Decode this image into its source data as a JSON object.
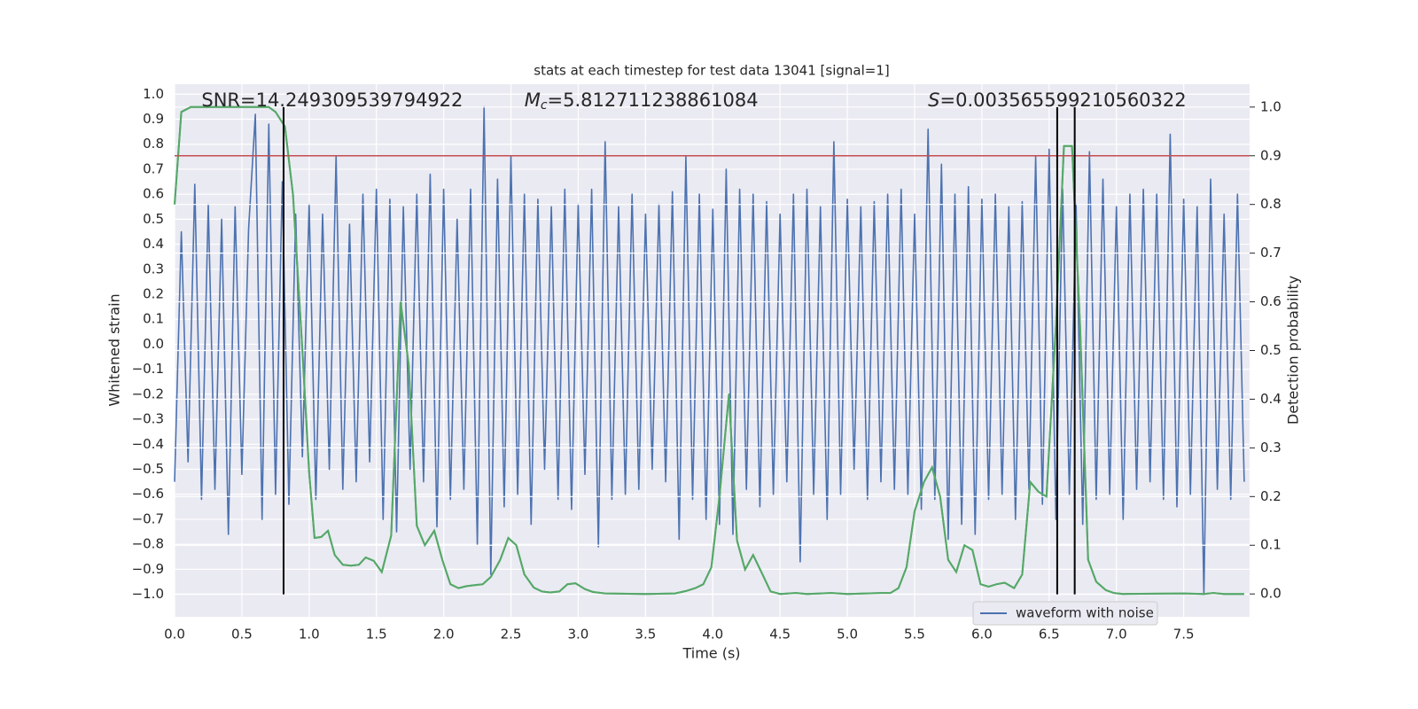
{
  "chart_data": {
    "type": "line",
    "title": "stats at each timestep for test data 13041 [signal=1]",
    "xlabel": "Time (s)",
    "ylabel": "Whitened strain",
    "y2label": "Detection probability",
    "annotations": [
      {
        "text": "SNR=14.249309539794922",
        "x": 0.2
      },
      {
        "symbol": "M",
        "subscript": "c",
        "text": "=5.812711238861084",
        "x": 2.6
      },
      {
        "symbol": "S",
        "text": "=0.003565599210560322",
        "x": 5.6
      }
    ],
    "xlim": [
      0,
      7.99
    ],
    "ylim": [
      -1.09,
      1.04
    ],
    "y2lim": [
      -0.047,
      1.047
    ],
    "xticks": [
      {
        "value": 0,
        "label": "0.0"
      },
      {
        "value": 0.5,
        "label": "0.5"
      },
      {
        "value": 1,
        "label": "1.0"
      },
      {
        "value": 1.5,
        "label": "1.5"
      },
      {
        "value": 2,
        "label": "2.0"
      },
      {
        "value": 2.5,
        "label": "2.5"
      },
      {
        "value": 3,
        "label": "3.0"
      },
      {
        "value": 3.5,
        "label": "3.5"
      },
      {
        "value": 4,
        "label": "4.0"
      },
      {
        "value": 4.5,
        "label": "4.5"
      },
      {
        "value": 5,
        "label": "5.0"
      },
      {
        "value": 5.5,
        "label": "5.5"
      },
      {
        "value": 6,
        "label": "6.0"
      },
      {
        "value": 6.5,
        "label": "6.5"
      },
      {
        "value": 7,
        "label": "7.0"
      },
      {
        "value": 7.5,
        "label": "7.5"
      }
    ],
    "yticks": [
      {
        "value": -1,
        "label": "−1.0"
      },
      {
        "value": -0.9,
        "label": "−0.9"
      },
      {
        "value": -0.8,
        "label": "−0.8"
      },
      {
        "value": -0.7,
        "label": "−0.7"
      },
      {
        "value": -0.6,
        "label": "−0.6"
      },
      {
        "value": -0.5,
        "label": "−0.5"
      },
      {
        "value": -0.4,
        "label": "−0.4"
      },
      {
        "value": -0.3,
        "label": "−0.3"
      },
      {
        "value": -0.2,
        "label": "−0.2"
      },
      {
        "value": -0.1,
        "label": "−0.1"
      },
      {
        "value": 0,
        "label": "0.0"
      },
      {
        "value": 0.1,
        "label": "0.1"
      },
      {
        "value": 0.2,
        "label": "0.2"
      },
      {
        "value": 0.3,
        "label": "0.3"
      },
      {
        "value": 0.4,
        "label": "0.4"
      },
      {
        "value": 0.5,
        "label": "0.5"
      },
      {
        "value": 0.6,
        "label": "0.6"
      },
      {
        "value": 0.7,
        "label": "0.7"
      },
      {
        "value": 0.8,
        "label": "0.8"
      },
      {
        "value": 0.9,
        "label": "0.9"
      },
      {
        "value": 1,
        "label": "1.0"
      }
    ],
    "y2ticks": [
      {
        "value": 0,
        "label": "0.0"
      },
      {
        "value": 0.1,
        "label": "0.1"
      },
      {
        "value": 0.2,
        "label": "0.2"
      },
      {
        "value": 0.3,
        "label": "0.3"
      },
      {
        "value": 0.4,
        "label": "0.4"
      },
      {
        "value": 0.5,
        "label": "0.5"
      },
      {
        "value": 0.6,
        "label": "0.6"
      },
      {
        "value": 0.7,
        "label": "0.7"
      },
      {
        "value": 0.8,
        "label": "0.8"
      },
      {
        "value": 0.9,
        "label": "0.9"
      },
      {
        "value": 1,
        "label": "1.0"
      }
    ],
    "grid": true,
    "legend": "lower right",
    "threshold": {
      "value": 0.9,
      "axis": "y2",
      "color": "#c44e52"
    },
    "vlines": [
      0.81,
      6.56,
      6.69
    ],
    "series": [
      {
        "name": "waveform with noise",
        "color": "#4c72b0",
        "x": [
          0,
          0.05,
          0.1,
          0.15,
          0.2,
          0.25,
          0.3,
          0.35,
          0.4,
          0.45,
          0.5,
          0.55,
          0.6,
          0.65,
          0.7,
          0.75,
          0.8,
          0.85,
          0.9,
          0.95,
          1,
          1.05,
          1.1,
          1.15,
          1.2,
          1.25,
          1.3,
          1.35,
          1.4,
          1.45,
          1.5,
          1.55,
          1.6,
          1.65,
          1.7,
          1.75,
          1.8,
          1.85,
          1.9,
          1.95,
          2,
          2.05,
          2.1,
          2.15,
          2.2,
          2.25,
          2.3,
          2.35,
          2.4,
          2.45,
          2.5,
          2.55,
          2.6,
          2.65,
          2.7,
          2.75,
          2.8,
          2.85,
          2.9,
          2.95,
          3,
          3.05,
          3.1,
          3.15,
          3.2,
          3.25,
          3.3,
          3.35,
          3.4,
          3.45,
          3.5,
          3.55,
          3.6,
          3.65,
          3.7,
          3.75,
          3.8,
          3.85,
          3.9,
          3.95,
          4,
          4.05,
          4.1,
          4.15,
          4.2,
          4.25,
          4.3,
          4.35,
          4.4,
          4.45,
          4.5,
          4.55,
          4.6,
          4.65,
          4.7,
          4.75,
          4.8,
          4.85,
          4.9,
          4.95,
          5,
          5.05,
          5.1,
          5.15,
          5.2,
          5.25,
          5.3,
          5.35,
          5.4,
          5.45,
          5.5,
          5.55,
          5.6,
          5.65,
          5.7,
          5.75,
          5.8,
          5.85,
          5.9,
          5.95,
          6,
          6.05,
          6.1,
          6.15,
          6.2,
          6.25,
          6.3,
          6.35,
          6.4,
          6.45,
          6.5,
          6.55,
          6.6,
          6.65,
          6.7,
          6.75,
          6.8,
          6.85,
          6.9,
          6.95,
          7,
          7.05,
          7.1,
          7.15,
          7.2,
          7.25,
          7.3,
          7.35,
          7.4,
          7.45,
          7.5,
          7.55,
          7.6,
          7.65,
          7.7,
          7.75,
          7.8,
          7.85,
          7.9,
          7.95
        ],
        "values": [
          -0.55,
          0.45,
          -0.47,
          0.64,
          -0.62,
          0.56,
          -0.58,
          0.5,
          -0.76,
          0.55,
          -0.52,
          0.46,
          0.92,
          -0.7,
          0.88,
          -0.6,
          0.65,
          -0.64,
          0.52,
          -0.45,
          0.56,
          -0.62,
          0.52,
          -0.5,
          0.75,
          -0.58,
          0.48,
          -0.55,
          0.6,
          -0.47,
          0.62,
          -0.7,
          0.58,
          -0.75,
          0.55,
          -0.5,
          0.6,
          -0.55,
          0.68,
          -0.73,
          0.62,
          -0.62,
          0.5,
          -0.58,
          0.62,
          -0.8,
          0.95,
          -0.92,
          0.66,
          -0.65,
          0.75,
          -0.6,
          0.6,
          -0.72,
          0.58,
          -0.5,
          0.55,
          -0.62,
          0.62,
          -0.66,
          0.56,
          -0.52,
          0.62,
          -0.81,
          0.81,
          -0.62,
          0.55,
          -0.6,
          0.6,
          -0.58,
          0.52,
          -0.5,
          0.56,
          -0.55,
          0.61,
          -0.78,
          0.75,
          -0.62,
          0.6,
          -0.7,
          0.54,
          -0.72,
          0.7,
          -0.76,
          0.62,
          -0.58,
          0.6,
          -0.65,
          0.57,
          -0.6,
          0.52,
          -0.55,
          0.6,
          -0.87,
          0.62,
          -0.6,
          0.55,
          -0.7,
          0.81,
          -0.6,
          0.58,
          -0.5,
          0.55,
          -0.62,
          0.57,
          -0.55,
          0.6,
          -0.58,
          0.62,
          -0.6,
          0.52,
          -0.66,
          0.86,
          -0.62,
          0.72,
          -0.78,
          0.6,
          -0.72,
          0.63,
          -0.76,
          0.58,
          -0.62,
          0.6,
          -0.6,
          0.55,
          -0.7,
          0.57,
          -0.58,
          0.75,
          -0.64,
          0.78,
          -0.7,
          0.62,
          -0.6,
          0.56,
          -0.72,
          0.77,
          -0.62,
          0.66,
          -0.6,
          0.55,
          -0.7,
          0.6,
          -0.58,
          0.62,
          -0.55,
          0.6,
          -0.62,
          0.84,
          -0.65,
          0.58,
          -0.6,
          0.55,
          -1.0,
          0.66,
          -0.58,
          0.52,
          -0.62,
          0.6,
          -0.55
        ]
      },
      {
        "color": "#55a868",
        "axis": "y2",
        "x": [
          0,
          0.05,
          0.12,
          0.7,
          0.75,
          0.82,
          0.88,
          0.95,
          1,
          1.04,
          1.09,
          1.14,
          1.19,
          1.25,
          1.31,
          1.37,
          1.42,
          1.48,
          1.54,
          1.61,
          1.68,
          1.74,
          1.8,
          1.86,
          1.93,
          1.99,
          2.05,
          2.11,
          2.17,
          2.23,
          2.29,
          2.35,
          2.42,
          2.48,
          2.54,
          2.6,
          2.67,
          2.73,
          2.79,
          2.86,
          2.92,
          2.98,
          3.05,
          3.11,
          3.2,
          3.5,
          3.72,
          3.8,
          3.87,
          3.93,
          3.99,
          4.05,
          4.12,
          4.18,
          4.24,
          4.3,
          4.37,
          4.43,
          4.5,
          4.62,
          4.7,
          4.88,
          5,
          5.25,
          5.32,
          5.38,
          5.44,
          5.5,
          5.57,
          5.63,
          5.69,
          5.75,
          5.81,
          5.87,
          5.93,
          5.99,
          6.05,
          6.11,
          6.17,
          6.24,
          6.3,
          6.36,
          6.42,
          6.48,
          6.55,
          6.61,
          6.67,
          6.73,
          6.79,
          6.85,
          6.92,
          6.98,
          7.05,
          7.5,
          7.65,
          7.72,
          7.8,
          7.95
        ],
        "values": [
          0.8,
          0.99,
          1.0,
          1.0,
          0.99,
          0.96,
          0.82,
          0.5,
          0.25,
          0.115,
          0.117,
          0.13,
          0.08,
          0.06,
          0.058,
          0.06,
          0.075,
          0.068,
          0.045,
          0.12,
          0.6,
          0.47,
          0.14,
          0.1,
          0.13,
          0.07,
          0.02,
          0.012,
          0.016,
          0.018,
          0.02,
          0.035,
          0.07,
          0.115,
          0.1,
          0.04,
          0.013,
          0.005,
          0.003,
          0.005,
          0.02,
          0.022,
          0.01,
          0.004,
          0.001,
          0.0,
          0.001,
          0.006,
          0.012,
          0.02,
          0.055,
          0.2,
          0.41,
          0.11,
          0.05,
          0.08,
          0.04,
          0.005,
          0.0,
          0.002,
          0.0,
          0.002,
          0.0,
          0.002,
          0.002,
          0.012,
          0.055,
          0.17,
          0.23,
          0.26,
          0.2,
          0.07,
          0.045,
          0.1,
          0.09,
          0.02,
          0.015,
          0.02,
          0.023,
          0.012,
          0.04,
          0.23,
          0.21,
          0.2,
          0.55,
          0.92,
          0.92,
          0.55,
          0.07,
          0.025,
          0.008,
          0.002,
          0.0,
          0.001,
          0.0,
          0.002,
          0.0,
          0.0
        ]
      }
    ]
  }
}
